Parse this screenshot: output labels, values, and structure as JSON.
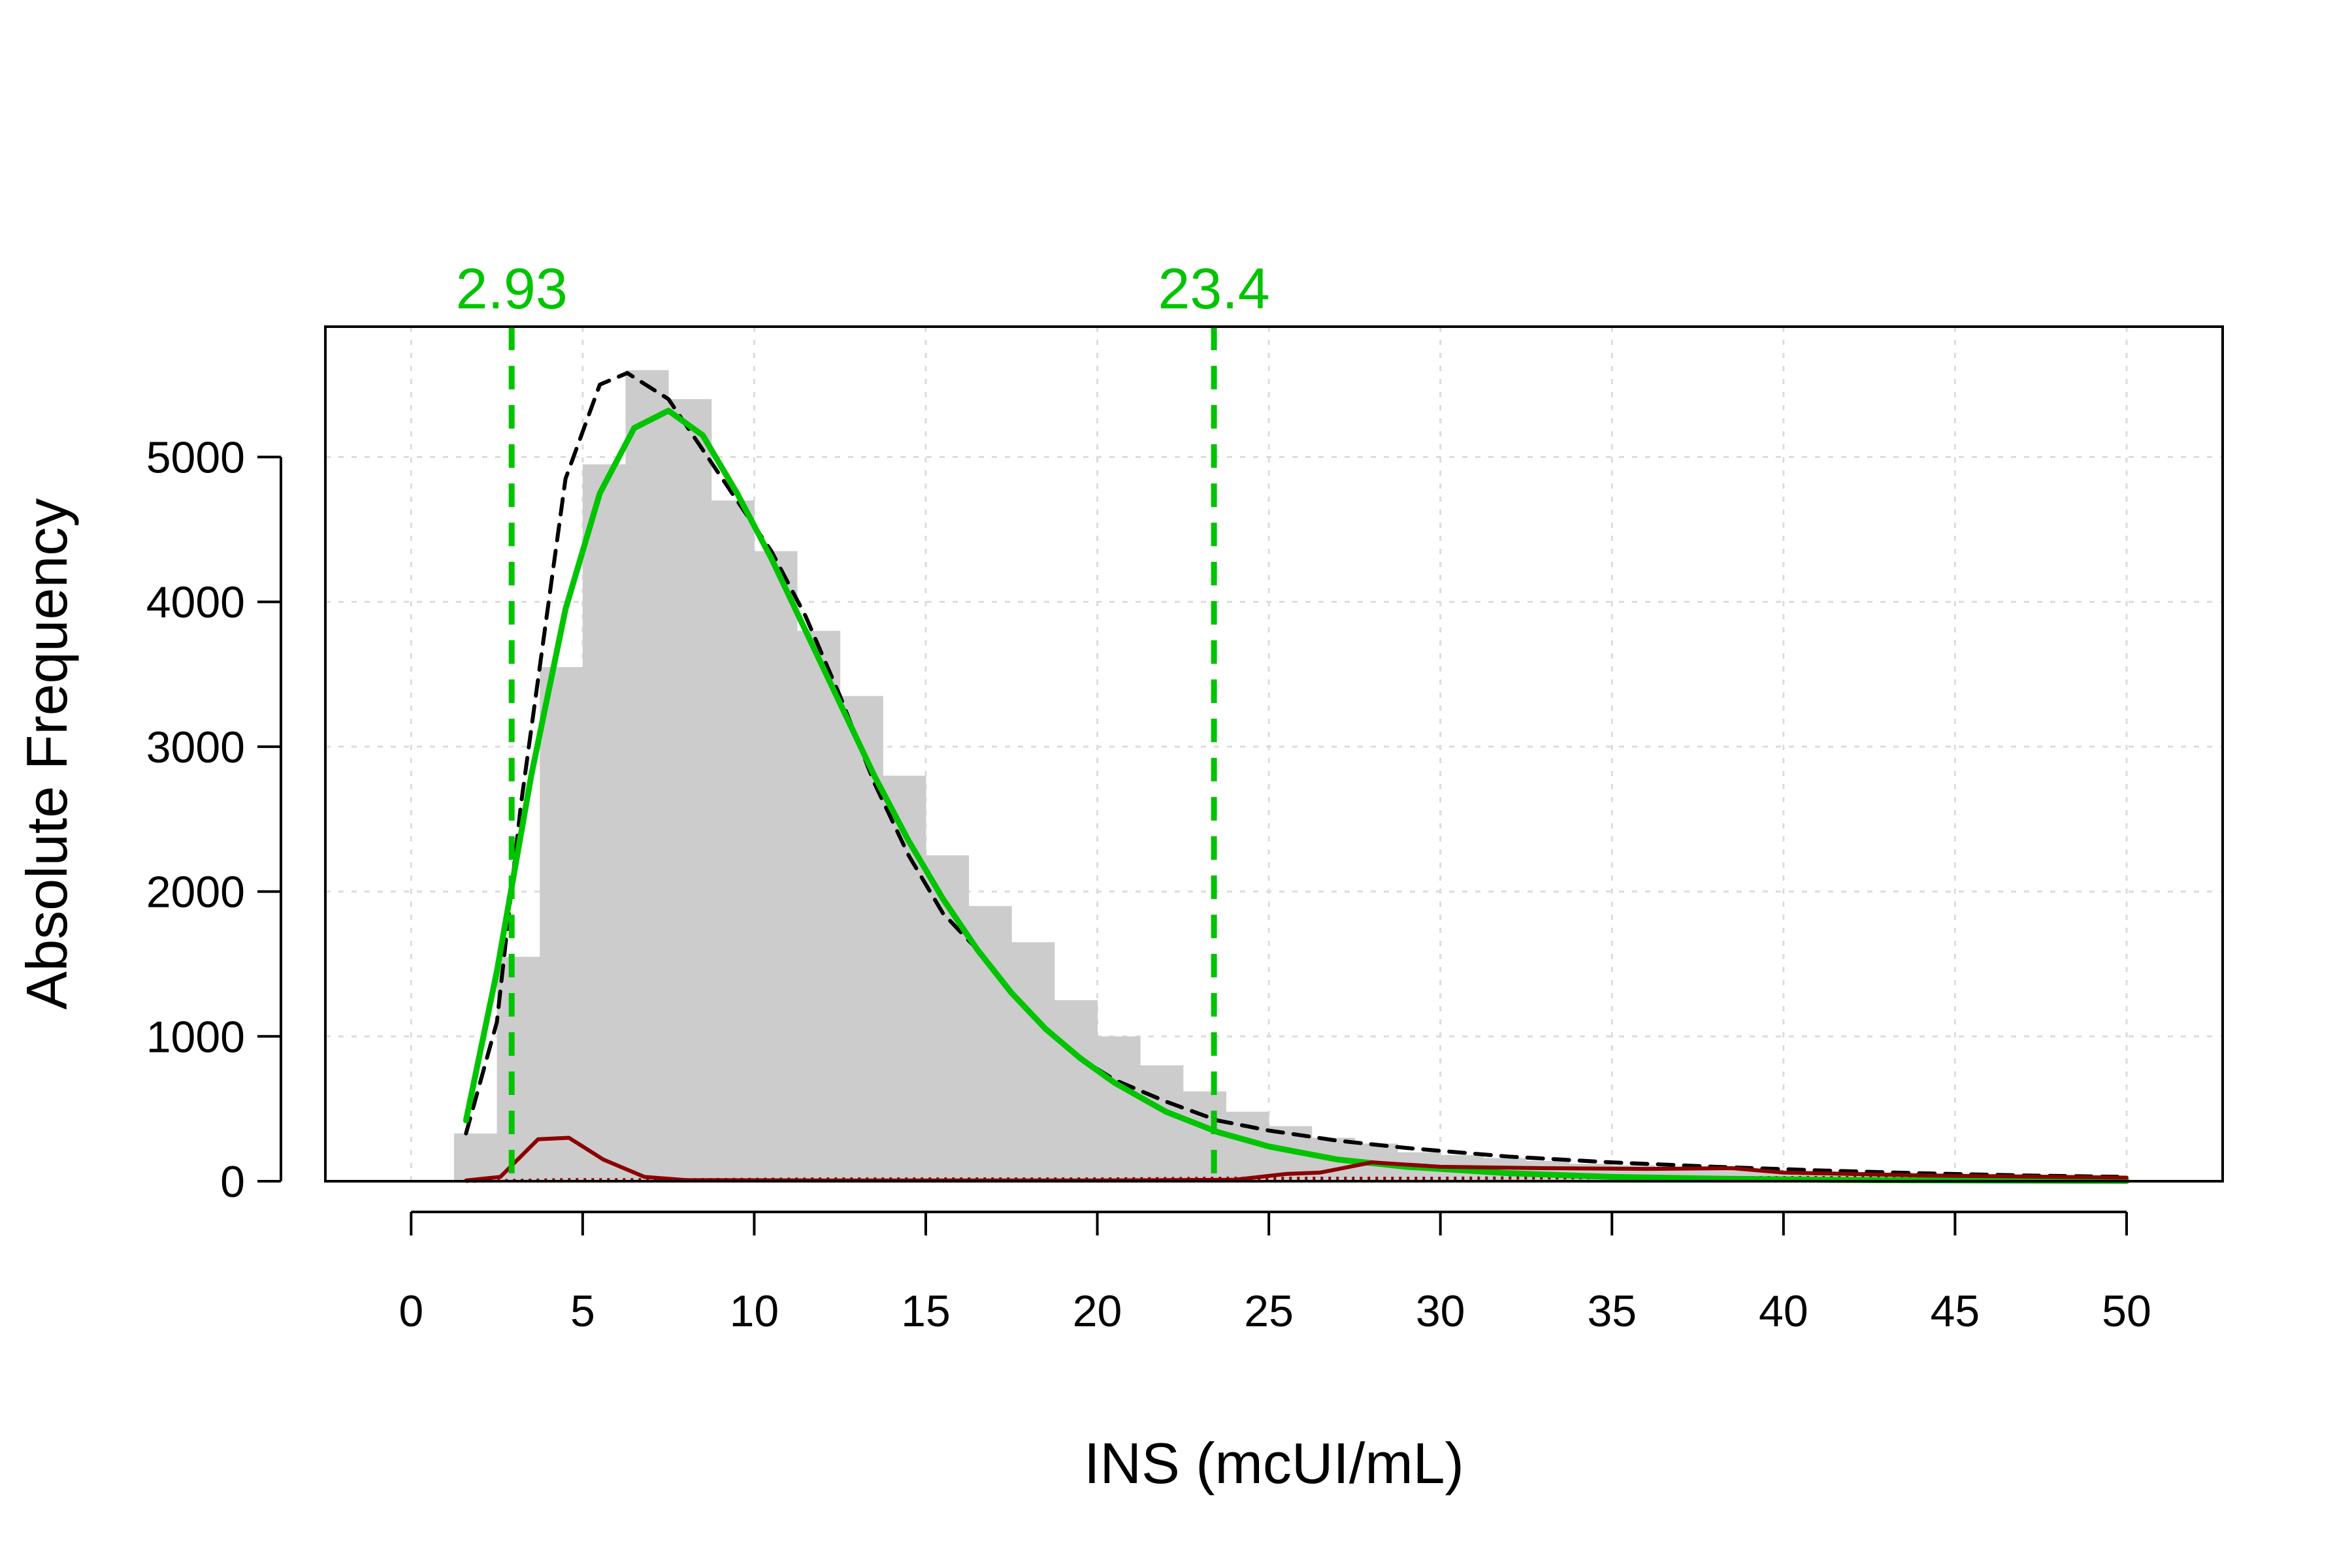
{
  "colors": {
    "histogram": "#cccccc",
    "grid": "#dcdcdc",
    "total_curve": "#000000",
    "fitted_curve": "#00c400",
    "reference_lines": "#00c400",
    "residual_curve": "#8b0000",
    "residual_dotted": "#8b0000"
  },
  "chart_data": {
    "type": "bar",
    "xlabel": "INS (mcUI/mL)",
    "ylabel": "Absolute Frequency",
    "xlim": [
      -2.5,
      52.8
    ],
    "ylim": [
      0,
      5900
    ],
    "x_ticks": [
      0,
      5,
      10,
      15,
      20,
      25,
      30,
      35,
      40,
      45,
      50
    ],
    "x_tick_labels": [
      "0",
      "5",
      "10",
      "15",
      "20",
      "25",
      "30",
      "35",
      "40",
      "45",
      "50"
    ],
    "y_ticks": [
      0,
      1000,
      2000,
      3000,
      4000,
      5000
    ],
    "y_tick_labels": [
      "0",
      "1000",
      "2000",
      "3000",
      "4000",
      "5000"
    ],
    "grid": true,
    "bin_width": 1.25,
    "histogram": {
      "bin_starts": [
        1.25,
        2.5,
        3.75,
        5.0,
        6.25,
        7.5,
        8.75,
        10.0,
        11.25,
        12.5,
        13.75,
        15.0,
        16.25,
        17.5,
        18.75,
        20.0,
        21.25,
        22.5,
        23.75,
        25.0,
        26.25,
        27.5,
        28.75,
        30.0,
        31.25,
        32.5,
        33.75,
        35.0,
        36.25,
        37.5,
        38.75,
        40.0,
        41.25,
        42.5,
        43.75,
        45.0,
        46.25,
        47.5,
        48.75
      ],
      "counts": [
        330,
        1550,
        3550,
        4950,
        5600,
        5400,
        4700,
        4350,
        3800,
        3350,
        2800,
        2250,
        1900,
        1650,
        1250,
        1000,
        800,
        620,
        480,
        380,
        300,
        260,
        200,
        180,
        160,
        140,
        120,
        110,
        100,
        95,
        80,
        70,
        65,
        60,
        50,
        45,
        40,
        35,
        30
      ]
    },
    "series": [
      {
        "name": "",
        "style": "dashed-black",
        "x": [
          1.6,
          2.5,
          3.2,
          4.5,
          5.5,
          6.3,
          7.5,
          8.5,
          9.5,
          10.5,
          11.5,
          12.5,
          13.5,
          14.5,
          15.5,
          16.5,
          17.5,
          18.5,
          19.5,
          20.5,
          22,
          23.5,
          25,
          27,
          29,
          32,
          35,
          38,
          41,
          44,
          47,
          50
        ],
        "values": [
          330,
          1100,
          2600,
          4850,
          5500,
          5580,
          5400,
          5050,
          4700,
          4350,
          3900,
          3350,
          2750,
          2250,
          1850,
          1600,
          1300,
          1050,
          850,
          700,
          550,
          420,
          350,
          280,
          230,
          170,
          130,
          100,
          75,
          55,
          40,
          30
        ]
      },
      {
        "name": "",
        "style": "solid-green",
        "x": [
          1.6,
          2.5,
          3.5,
          4.5,
          5.5,
          6.5,
          7.5,
          8.5,
          9.5,
          10.5,
          11.5,
          12.5,
          13.5,
          14.5,
          15.5,
          16.5,
          17.5,
          18.5,
          19.5,
          20.5,
          22,
          23.5,
          25,
          27,
          29,
          32,
          35,
          38,
          41,
          44,
          47,
          50
        ],
        "values": [
          420,
          1450,
          2800,
          3950,
          4750,
          5200,
          5320,
          5150,
          4750,
          4300,
          3800,
          3300,
          2800,
          2350,
          1950,
          1600,
          1300,
          1050,
          850,
          680,
          480,
          340,
          240,
          150,
          100,
          55,
          30,
          18,
          10,
          6,
          4,
          2
        ]
      },
      {
        "name": "",
        "style": "solid-darkred",
        "x": [
          1.6,
          2.6,
          3.7,
          4.6,
          5.6,
          6.8,
          8,
          12,
          16,
          20,
          24,
          25.5,
          26.5,
          28,
          30,
          33,
          36,
          38.5,
          40,
          42,
          44,
          46,
          48,
          50
        ],
        "values": [
          5,
          30,
          290,
          300,
          150,
          30,
          8,
          5,
          5,
          5,
          10,
          50,
          60,
          130,
          100,
          90,
          85,
          90,
          60,
          50,
          40,
          35,
          30,
          25
        ]
      }
    ],
    "dotted_series": {
      "x": [
        1.6,
        3.0,
        4.5,
        6,
        8,
        12,
        16,
        20,
        24,
        27,
        30,
        35,
        40,
        45,
        50
      ],
      "values": [
        0,
        5,
        10,
        10,
        10,
        15,
        15,
        15,
        20,
        20,
        20,
        25,
        25,
        25,
        20
      ]
    },
    "reference_lines": [
      {
        "x": 2.93,
        "label": "2.93"
      },
      {
        "x": 23.4,
        "label": "23.4"
      }
    ]
  }
}
